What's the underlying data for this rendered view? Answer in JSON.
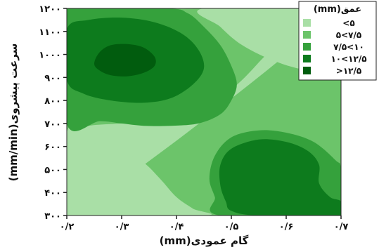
{
  "chart_data": {
    "type": "contour",
    "xlabel": "گام عمودی(mm)",
    "ylabel": "سرعت پیشروی(mm/min)",
    "xlim": [
      0.2,
      0.7
    ],
    "ylim": [
      300,
      1200
    ],
    "x_ticks": [
      {
        "value": 0.2,
        "label": "۰/۲"
      },
      {
        "value": 0.3,
        "label": "۰/۳"
      },
      {
        "value": 0.4,
        "label": "۰/۴"
      },
      {
        "value": 0.5,
        "label": "۰/۵"
      },
      {
        "value": 0.6,
        "label": "۰/۶"
      },
      {
        "value": 0.7,
        "label": "۰/۷"
      }
    ],
    "y_ticks": [
      {
        "value": 300,
        "label": "۳۰۰"
      },
      {
        "value": 400,
        "label": "۴۰۰"
      },
      {
        "value": 500,
        "label": "۵۰۰"
      },
      {
        "value": 600,
        "label": "۶۰۰"
      },
      {
        "value": 700,
        "label": "۷۰۰"
      },
      {
        "value": 800,
        "label": "۸۰۰"
      },
      {
        "value": 900,
        "label": "۹۰۰"
      },
      {
        "value": 1000,
        "label": "۱۰۰۰"
      },
      {
        "value": 1100,
        "label": "۱۱۰۰"
      },
      {
        "value": 1200,
        "label": "۱۲۰۰"
      }
    ],
    "legend": {
      "title": "عمق(mm)",
      "placement": "top-right",
      "entries": [
        {
          "label": "<۵",
          "color": "#a9dfa6"
        },
        {
          "label": "۵<۷/۵",
          "color": "#6cc46a"
        },
        {
          "label": "۷/۵<۱۰",
          "color": "#35a13c"
        },
        {
          "label": "۱۰<۱۲/۵",
          "color": "#0d7b1d"
        },
        {
          "label": ">۱۲/۵",
          "color": "#015c0e"
        }
      ]
    },
    "regions": [
      {
        "level": "۵<۷/۵",
        "color": "#6cc46a",
        "points": [
          [
            0.2,
            300
          ],
          [
            0.7,
            300
          ],
          [
            0.7,
            1200
          ],
          [
            0.2,
            1200
          ]
        ]
      },
      {
        "level": "<۵",
        "color": "#a9dfa6",
        "points": [
          [
            0.2,
            300
          ],
          [
            0.2,
            660
          ],
          [
            0.24,
            690
          ],
          [
            0.3,
            700
          ],
          [
            0.36,
            712
          ],
          [
            0.42,
            735
          ],
          [
            0.47,
            790
          ],
          [
            0.52,
            890
          ],
          [
            0.56,
            990
          ],
          [
            0.6,
            1080
          ],
          [
            0.64,
            1140
          ],
          [
            0.68,
            1180
          ],
          [
            0.7,
            1190
          ],
          [
            0.7,
            1200
          ],
          [
            0.2,
            1200
          ],
          [
            0.2,
            1170
          ],
          [
            0.3,
            1200
          ],
          [
            0.6,
            1200
          ],
          [
            0.7,
            1200
          ]
        ]
      },
      {
        "level": "<۵",
        "color": "#a9dfa6",
        "points": [
          [
            0.2,
            300
          ],
          [
            0.2,
            640
          ],
          [
            0.24,
            620
          ],
          [
            0.3,
            580
          ],
          [
            0.34,
            530
          ],
          [
            0.37,
            460
          ],
          [
            0.4,
            380
          ],
          [
            0.43,
            330
          ],
          [
            0.45,
            300
          ]
        ]
      },
      {
        "level": "<۵",
        "color": "#a9dfa6",
        "points": [
          [
            0.2,
            1200
          ],
          [
            0.2,
            1190
          ],
          [
            0.32,
            1195
          ],
          [
            0.45,
            1200
          ]
        ]
      },
      {
        "level": "<۵",
        "color": "#a9dfa6",
        "points": [
          [
            0.45,
            1200
          ],
          [
            0.48,
            1120
          ],
          [
            0.52,
            1040
          ],
          [
            0.58,
            970
          ],
          [
            0.64,
            930
          ],
          [
            0.7,
            920
          ],
          [
            0.7,
            1200
          ]
        ]
      },
      {
        "level": "<۵",
        "color": "#a9dfa6",
        "points": [
          [
            0.2,
            370
          ],
          [
            0.21,
            330
          ],
          [
            0.22,
            300
          ],
          [
            0.2,
            300
          ]
        ]
      },
      {
        "level": "۷/۵<۱۰",
        "color": "#35a13c",
        "points": [
          [
            0.2,
            700
          ],
          [
            0.26,
            710
          ],
          [
            0.3,
            700
          ],
          [
            0.34,
            690
          ],
          [
            0.39,
            690
          ],
          [
            0.44,
            700
          ],
          [
            0.48,
            740
          ],
          [
            0.5,
            800
          ],
          [
            0.51,
            870
          ],
          [
            0.5,
            950
          ],
          [
            0.48,
            1040
          ],
          [
            0.45,
            1120
          ],
          [
            0.42,
            1180
          ],
          [
            0.38,
            1200
          ],
          [
            0.2,
            1200
          ]
        ]
      },
      {
        "level": "۷/۵<۱۰",
        "color": "#35a13c",
        "points": [
          [
            0.48,
            300
          ],
          [
            0.47,
            380
          ],
          [
            0.46,
            460
          ],
          [
            0.47,
            560
          ],
          [
            0.5,
            640
          ],
          [
            0.55,
            670
          ],
          [
            0.6,
            660
          ],
          [
            0.65,
            620
          ],
          [
            0.69,
            540
          ],
          [
            0.7,
            500
          ],
          [
            0.7,
            300
          ]
        ]
      },
      {
        "level": "۱۰<۱۲/۵",
        "color": "#0d7b1d",
        "points": [
          [
            0.2,
            890
          ],
          [
            0.23,
            830
          ],
          [
            0.28,
            800
          ],
          [
            0.34,
            790
          ],
          [
            0.39,
            810
          ],
          [
            0.43,
            870
          ],
          [
            0.45,
            940
          ],
          [
            0.44,
            1020
          ],
          [
            0.41,
            1090
          ],
          [
            0.36,
            1140
          ],
          [
            0.3,
            1160
          ],
          [
            0.24,
            1150
          ],
          [
            0.2,
            1110
          ]
        ]
      },
      {
        "level": "۱۰<۱۲/۵",
        "color": "#0d7b1d",
        "points": [
          [
            0.49,
            360
          ],
          [
            0.48,
            430
          ],
          [
            0.48,
            520
          ],
          [
            0.5,
            590
          ],
          [
            0.55,
            630
          ],
          [
            0.6,
            620
          ],
          [
            0.64,
            580
          ],
          [
            0.66,
            520
          ],
          [
            0.66,
            440
          ],
          [
            0.68,
            380
          ],
          [
            0.7,
            360
          ],
          [
            0.7,
            300
          ],
          [
            0.55,
            300
          ],
          [
            0.5,
            320
          ]
        ]
      },
      {
        "level": ">۱۲/۵",
        "color": "#015c0e",
        "points": [
          [
            0.25,
            960
          ],
          [
            0.26,
            930
          ],
          [
            0.28,
            910
          ],
          [
            0.31,
            905
          ],
          [
            0.34,
            920
          ],
          [
            0.36,
            950
          ],
          [
            0.36,
            990
          ],
          [
            0.34,
            1030
          ],
          [
            0.31,
            1045
          ],
          [
            0.28,
            1040
          ],
          [
            0.26,
            1010
          ]
        ]
      }
    ]
  }
}
